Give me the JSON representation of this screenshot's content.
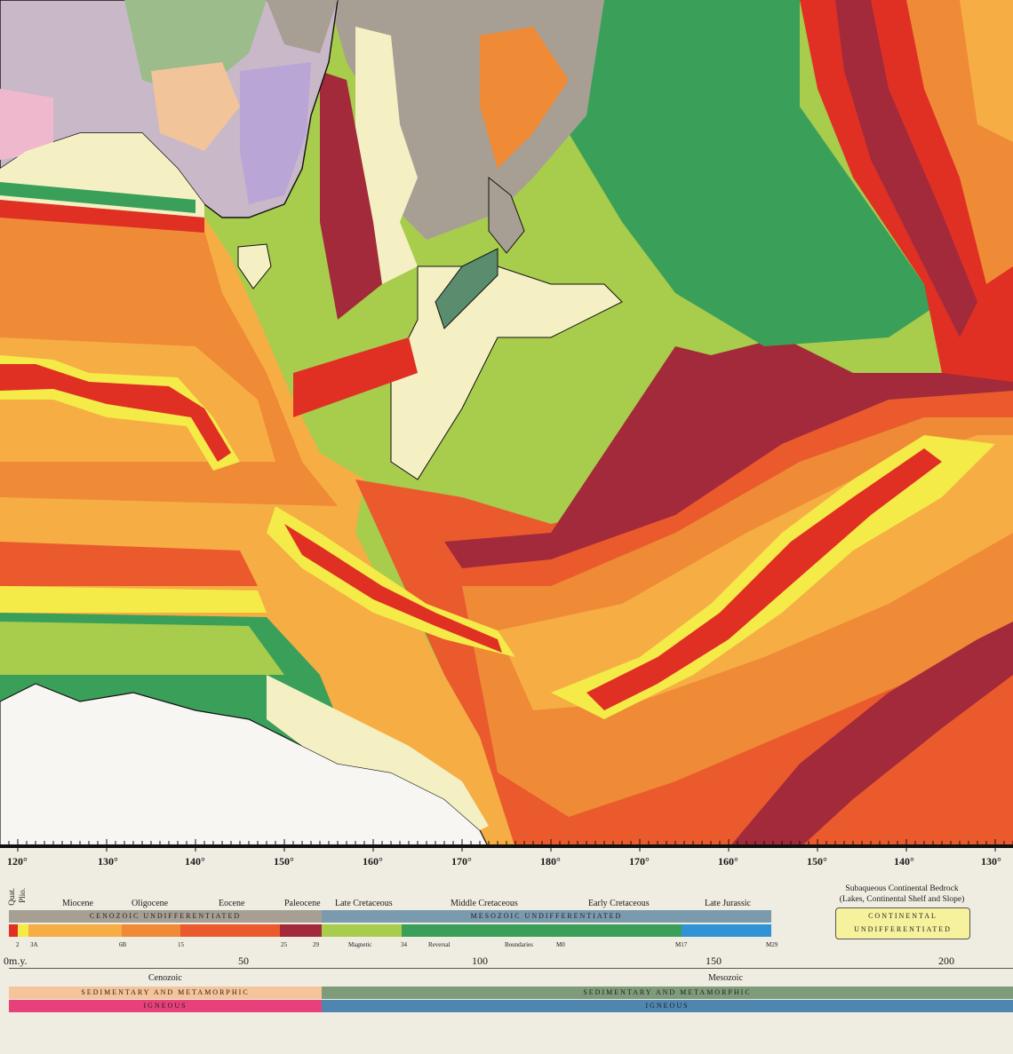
{
  "colors": {
    "dark_red": "#a32a3a",
    "red": "#e03024",
    "orange_red": "#ea5a2c",
    "orange": "#ef8a36",
    "light_orange": "#f6ad44",
    "yellow": "#f4ea48",
    "yellow_green": "#a8cc4c",
    "green": "#3aa059",
    "cream": "#f4f0c4",
    "gray": "#a79f94",
    "blue": "#2f93d6",
    "pink": "#e8407a",
    "peach": "#f6c49a"
  },
  "longitude_labels": [
    "120°",
    "130°",
    "140°",
    "150°",
    "160°",
    "170°",
    "180°",
    "170°",
    "160°",
    "150°",
    "140°",
    "130°"
  ],
  "epochs": {
    "quat": "Quat.",
    "plio": "Plio.",
    "miocene": "Miocene",
    "oligocene": "Oligocene",
    "eocene": "Eocene",
    "paleocene": "Paleocene",
    "late_cretaceous": "Late Cretaceous",
    "middle_cretaceous": "Middle Cretaceous",
    "early_cretaceous": "Early Cretaceous",
    "late_jurassic": "Late Jurassic"
  },
  "era_bars": {
    "cenozoic": "CENOZOIC UNDIFFERENTIATED",
    "mesozoic": "MESOZOIC UNDIFFERENTIATED"
  },
  "anomalies": [
    "2",
    "3A",
    "6B",
    "15",
    "25",
    "29",
    "34",
    "M0",
    "M17",
    "M29"
  ],
  "magnetic_labels": [
    "Magnetic",
    "Reversal",
    "Boundaries"
  ],
  "time_axis": {
    "unit": "m.y.",
    "ticks": [
      "0",
      "50",
      "100",
      "150",
      "200"
    ],
    "cenozoic": "Cenozoic",
    "mesozoic": "Mesozoic"
  },
  "rock_bars": {
    "sed_ceno": "SEDIMENTARY AND METAMORPHIC",
    "ign_ceno": "IGNEOUS",
    "sed_meso": "SEDIMENTARY AND METAMORPHIC",
    "ign_meso": "IGNEOUS"
  },
  "continental_legend": {
    "title_line1": "Subaqueous Continental Bedrock",
    "title_line2": "(Lakes, Continental Shelf and Slope)",
    "box_line1": "CONTINENTAL",
    "box_line2": "UNDIFFERENTIATED"
  }
}
